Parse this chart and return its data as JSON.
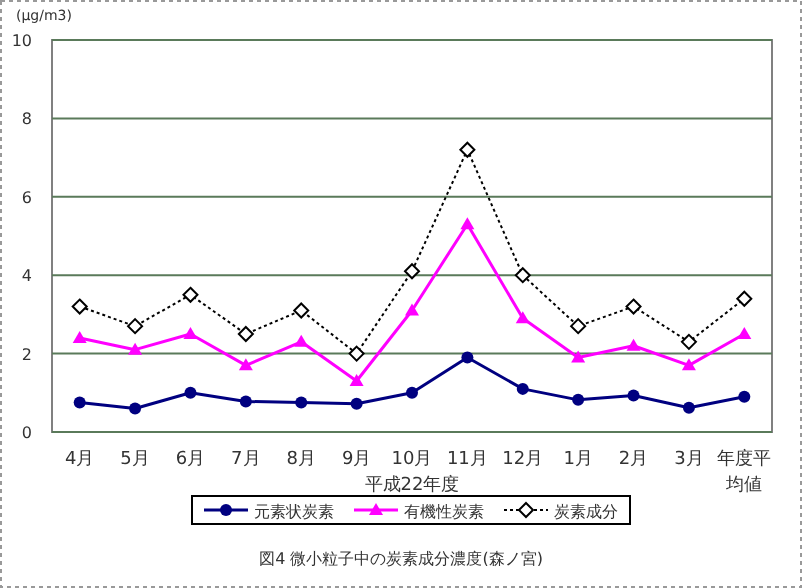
{
  "chart_data": {
    "type": "line",
    "title": "図4 微小粒子中の炭素成分濃度(森ノ宮)",
    "ylabel": "(μg/m3)",
    "xlabel": "平成22年度",
    "categories": [
      "4月",
      "5月",
      "6月",
      "7月",
      "8月",
      "9月",
      "10月",
      "11月",
      "12月",
      "1月",
      "2月",
      "3月",
      "年度平均値"
    ],
    "ylim": [
      0,
      10
    ],
    "yticks": [
      0,
      2,
      4,
      6,
      8,
      10
    ],
    "grid": "y",
    "legend": "bottom",
    "series": [
      {
        "name": "元素状炭素",
        "color": "#000080",
        "marker": "circle",
        "line_style": "solid",
        "values": [
          0.75,
          0.6,
          1.0,
          0.78,
          0.75,
          0.72,
          1.0,
          1.9,
          1.1,
          0.82,
          0.93,
          0.62,
          0.9
        ]
      },
      {
        "name": "有機性炭素",
        "color": "#ff00ff",
        "marker": "triangle",
        "line_style": "solid",
        "values": [
          2.4,
          2.1,
          2.5,
          1.7,
          2.3,
          1.3,
          3.1,
          5.3,
          2.9,
          1.9,
          2.2,
          1.7,
          2.5
        ]
      },
      {
        "name": "炭素成分",
        "color": "#000000",
        "marker": "diamond",
        "line_style": "dotted",
        "values": [
          3.2,
          2.7,
          3.5,
          2.5,
          3.1,
          2.0,
          4.1,
          7.2,
          4.0,
          2.7,
          3.2,
          2.3,
          3.4
        ]
      }
    ]
  }
}
